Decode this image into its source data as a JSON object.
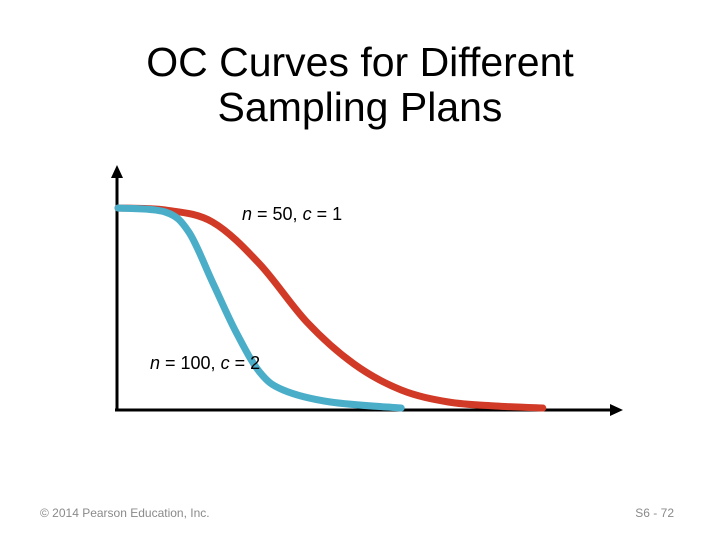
{
  "slide": {
    "title_line1": "OC Curves for Different",
    "title_line2": "Sampling Plans",
    "footer_copyright": "© 2014 Pearson Education, Inc.",
    "footer_page": "S6 - 72"
  },
  "colors": {
    "axis": "#000000",
    "series_n50": "#d13a26",
    "series_n100": "#4aaec9",
    "footer_text": "#8a8a8a"
  },
  "chart_data": {
    "type": "line",
    "title": "OC Curves for Different Sampling Plans",
    "xlabel": "",
    "ylabel": "",
    "xlim": [
      0,
      1
    ],
    "ylim": [
      0,
      1
    ],
    "axis_ticks": false,
    "grid": false,
    "legend": "none",
    "series": [
      {
        "name": "n = 50, c = 1",
        "color": "#d13a26",
        "points": [
          [
            0.0,
            1.0
          ],
          [
            0.1,
            0.99
          ],
          [
            0.2,
            0.93
          ],
          [
            0.3,
            0.72
          ],
          [
            0.4,
            0.43
          ],
          [
            0.5,
            0.22
          ],
          [
            0.6,
            0.09
          ],
          [
            0.7,
            0.03
          ],
          [
            0.8,
            0.01
          ],
          [
            0.9,
            0.0
          ]
        ]
      },
      {
        "name": "n = 100, c = 2",
        "color": "#4aaec9",
        "points": [
          [
            0.0,
            1.0
          ],
          [
            0.1,
            0.98
          ],
          [
            0.15,
            0.88
          ],
          [
            0.2,
            0.63
          ],
          [
            0.25,
            0.38
          ],
          [
            0.3,
            0.18
          ],
          [
            0.35,
            0.09
          ],
          [
            0.45,
            0.03
          ],
          [
            0.6,
            0.0
          ]
        ]
      }
    ]
  }
}
